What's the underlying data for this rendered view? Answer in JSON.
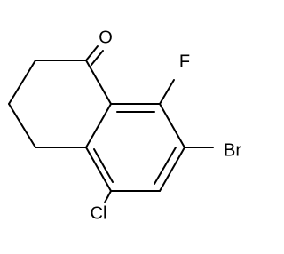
{
  "atoms": [
    {
      "label": "O"
    },
    {
      "label": "F"
    },
    {
      "label": "Br"
    },
    {
      "label": "Cl"
    }
  ]
}
